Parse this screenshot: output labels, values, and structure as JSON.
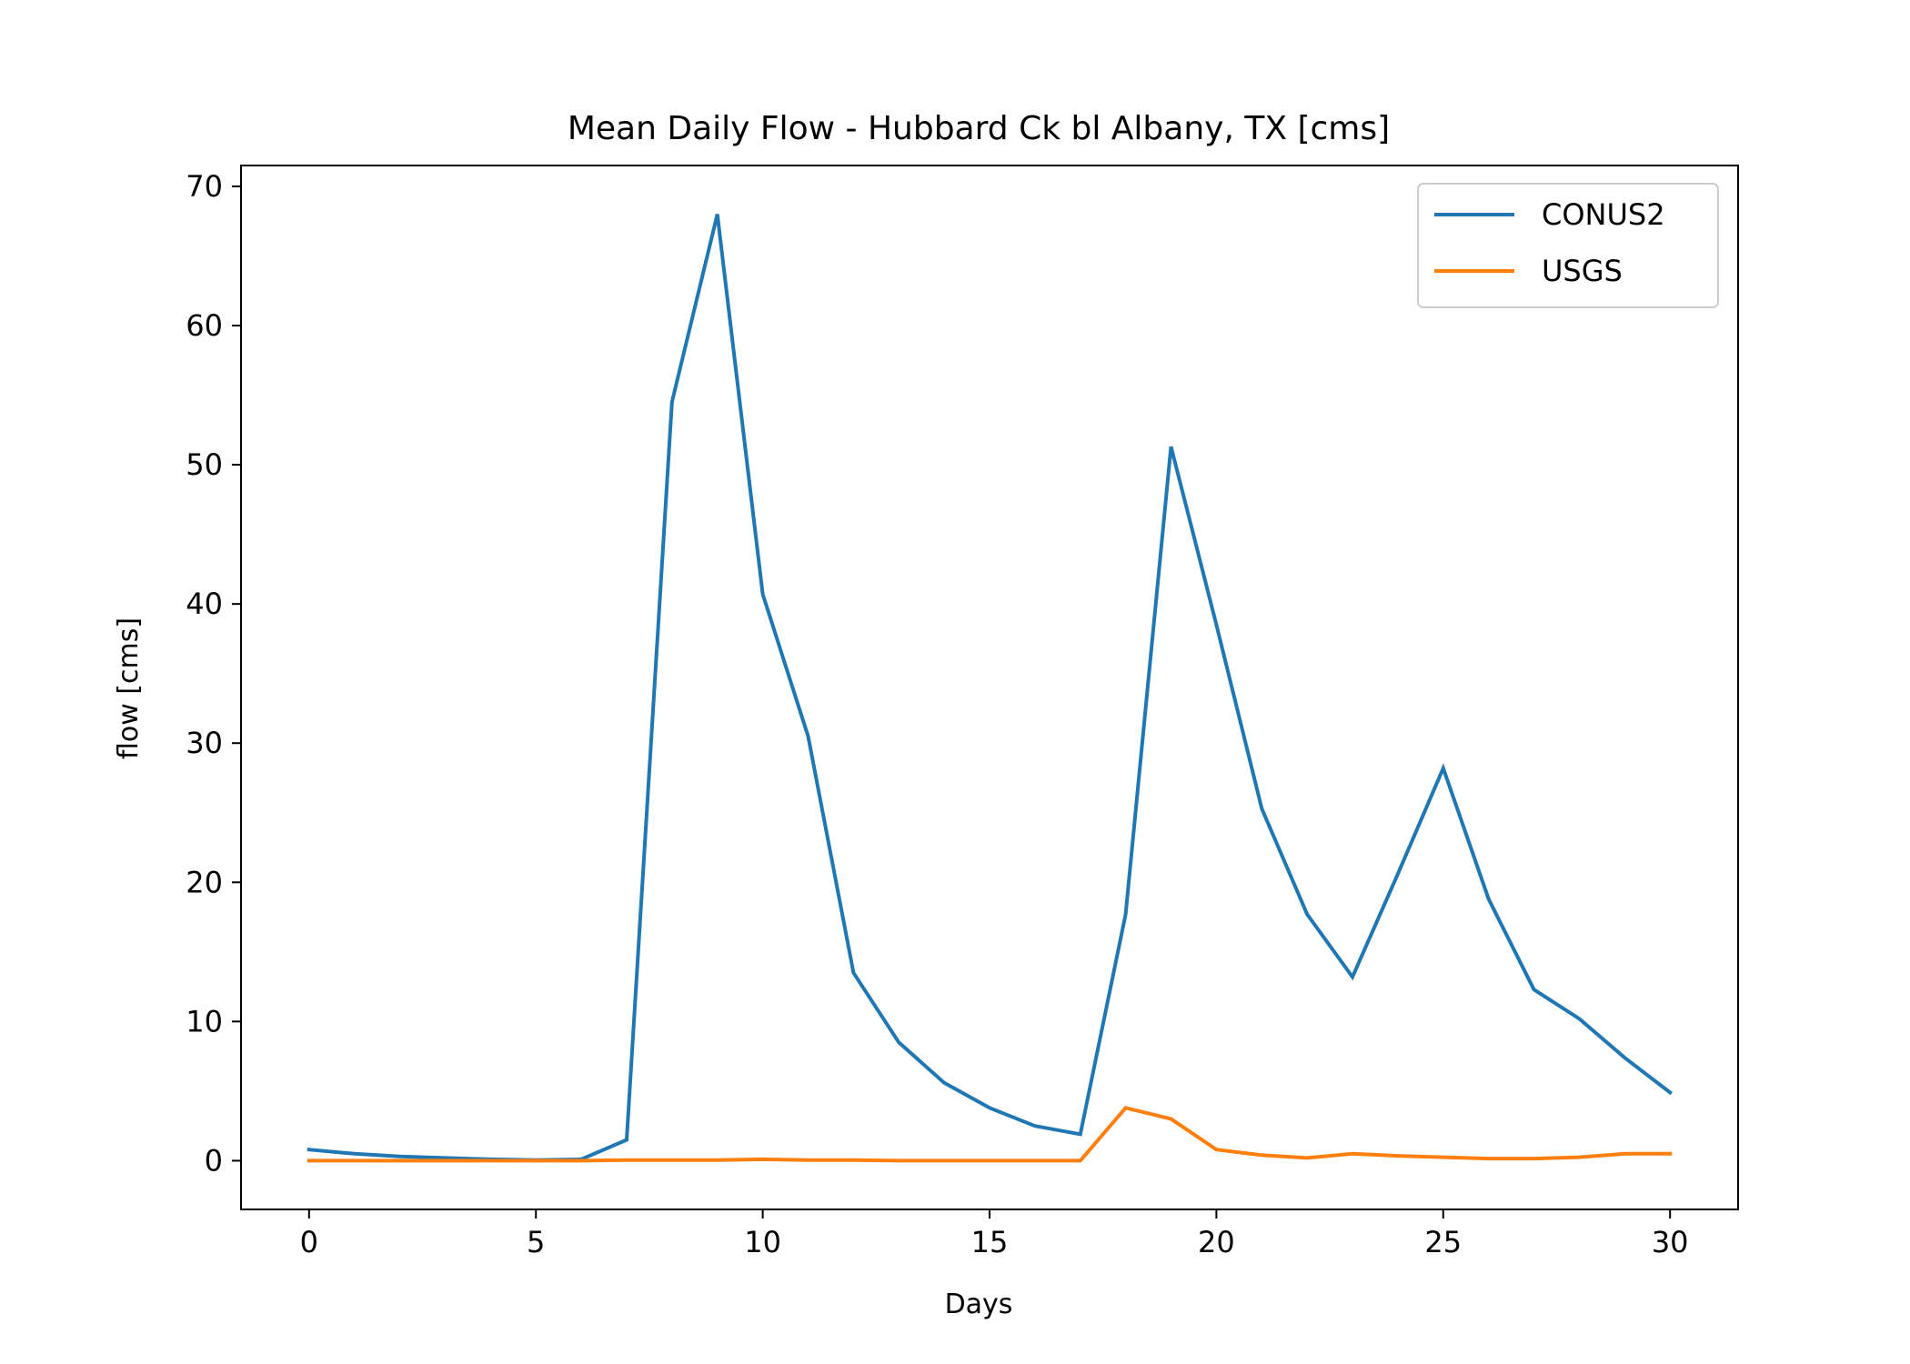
{
  "chart_data": {
    "type": "line",
    "title": "Mean Daily Flow - Hubbard Ck bl Albany, TX [cms]",
    "xlabel": "Days",
    "ylabel": "flow [cms]",
    "xlim": [
      -1.5,
      31.5
    ],
    "ylim": [
      -3.5,
      71.5
    ],
    "xticks": [
      0,
      5,
      10,
      15,
      20,
      25,
      30
    ],
    "yticks": [
      0,
      10,
      20,
      30,
      40,
      50,
      60,
      70
    ],
    "grid": false,
    "legend_position": "top-right",
    "x": [
      0,
      1,
      2,
      3,
      4,
      5,
      6,
      7,
      8,
      9,
      10,
      11,
      12,
      13,
      14,
      15,
      16,
      17,
      18,
      19,
      20,
      21,
      22,
      23,
      24,
      25,
      26,
      27,
      28,
      29,
      30
    ],
    "series": [
      {
        "name": "CONUS2",
        "color": "#1f77b4",
        "values": [
          0.8,
          0.5,
          0.3,
          0.2,
          0.1,
          0.05,
          0.1,
          1.5,
          54.5,
          68.0,
          40.7,
          30.5,
          13.5,
          8.5,
          5.6,
          3.8,
          2.5,
          1.9,
          17.7,
          51.3,
          38.5,
          25.3,
          17.7,
          13.2,
          20.6,
          28.2,
          18.8,
          12.3,
          10.2,
          7.4,
          4.9
        ]
      },
      {
        "name": "USGS",
        "color": "#ff7f0e",
        "values": [
          0.0,
          0.0,
          0.0,
          0.0,
          0.0,
          0.0,
          0.0,
          0.05,
          0.05,
          0.05,
          0.1,
          0.05,
          0.05,
          0.0,
          0.0,
          0.0,
          0.0,
          0.0,
          3.8,
          3.0,
          0.8,
          0.4,
          0.2,
          0.5,
          0.35,
          0.25,
          0.15,
          0.15,
          0.25,
          0.5,
          0.5
        ]
      }
    ]
  }
}
